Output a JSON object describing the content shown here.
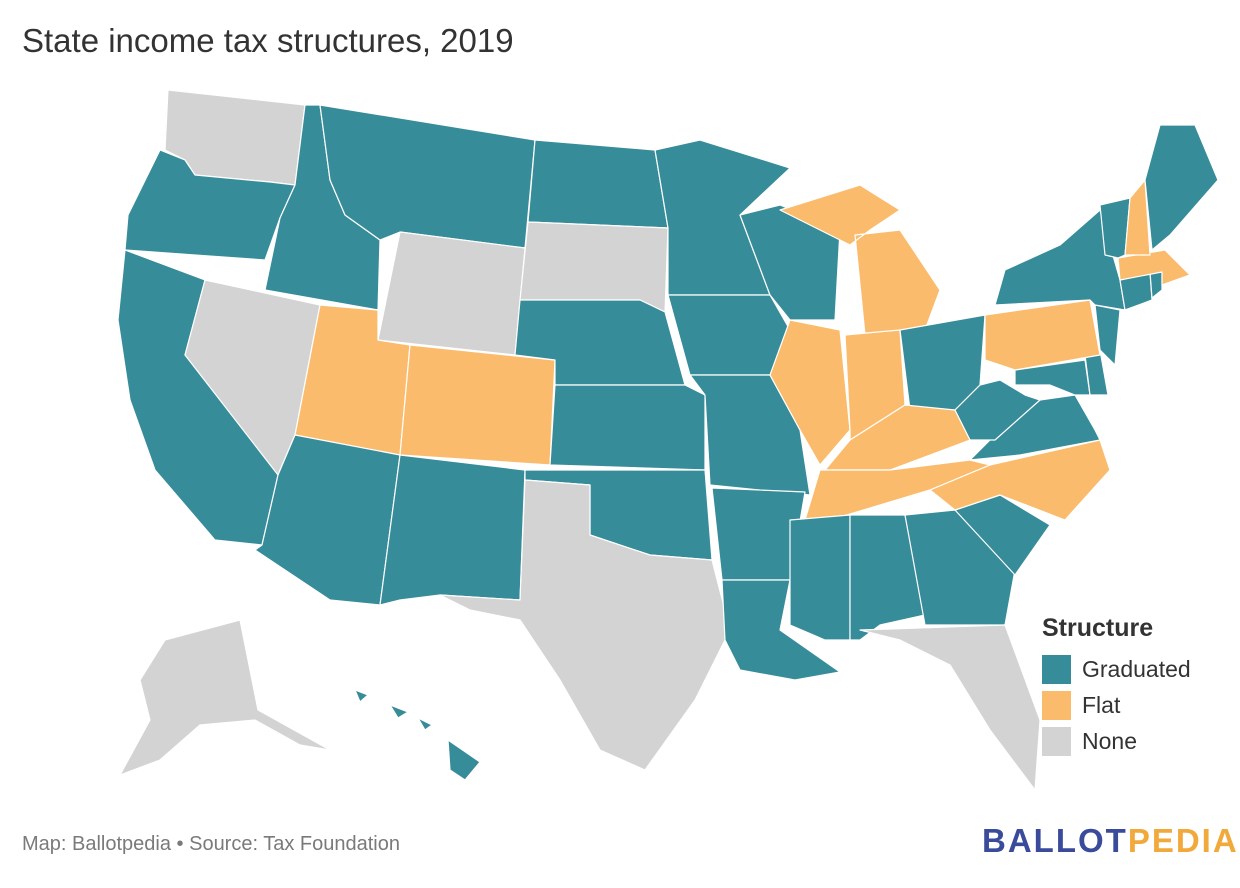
{
  "title": "State income tax structures, 2019",
  "legend": {
    "title": "Structure",
    "items": [
      {
        "label": "Graduated",
        "color": "#368c98"
      },
      {
        "label": "Flat",
        "color": "#fbbb6c"
      },
      {
        "label": "None",
        "color": "#d3d3d3"
      }
    ]
  },
  "colors": {
    "Graduated": "#368c98",
    "Flat": "#fbbb6c",
    "None": "#d3d3d3",
    "border": "#ffffff"
  },
  "states": [
    {
      "name": "Washington",
      "category": "None"
    },
    {
      "name": "Oregon",
      "category": "Graduated"
    },
    {
      "name": "California",
      "category": "Graduated"
    },
    {
      "name": "Nevada",
      "category": "None"
    },
    {
      "name": "Idaho",
      "category": "Graduated"
    },
    {
      "name": "Montana",
      "category": "Graduated"
    },
    {
      "name": "Wyoming",
      "category": "None"
    },
    {
      "name": "Utah",
      "category": "Flat"
    },
    {
      "name": "Arizona",
      "category": "Graduated"
    },
    {
      "name": "Colorado",
      "category": "Flat"
    },
    {
      "name": "New Mexico",
      "category": "Graduated"
    },
    {
      "name": "North Dakota",
      "category": "Graduated"
    },
    {
      "name": "South Dakota",
      "category": "None"
    },
    {
      "name": "Nebraska",
      "category": "Graduated"
    },
    {
      "name": "Kansas",
      "category": "Graduated"
    },
    {
      "name": "Oklahoma",
      "category": "Graduated"
    },
    {
      "name": "Texas",
      "category": "None"
    },
    {
      "name": "Minnesota",
      "category": "Graduated"
    },
    {
      "name": "Iowa",
      "category": "Graduated"
    },
    {
      "name": "Missouri",
      "category": "Graduated"
    },
    {
      "name": "Arkansas",
      "category": "Graduated"
    },
    {
      "name": "Louisiana",
      "category": "Graduated"
    },
    {
      "name": "Wisconsin",
      "category": "Graduated"
    },
    {
      "name": "Illinois",
      "category": "Flat"
    },
    {
      "name": "Michigan",
      "category": "Flat"
    },
    {
      "name": "Indiana",
      "category": "Flat"
    },
    {
      "name": "Ohio",
      "category": "Graduated"
    },
    {
      "name": "Kentucky",
      "category": "Flat"
    },
    {
      "name": "Tennessee",
      "category": "Flat"
    },
    {
      "name": "Mississippi",
      "category": "Graduated"
    },
    {
      "name": "Alabama",
      "category": "Graduated"
    },
    {
      "name": "Georgia",
      "category": "Graduated"
    },
    {
      "name": "Florida",
      "category": "None"
    },
    {
      "name": "South Carolina",
      "category": "Graduated"
    },
    {
      "name": "North Carolina",
      "category": "Flat"
    },
    {
      "name": "Virginia",
      "category": "Graduated"
    },
    {
      "name": "West Virginia",
      "category": "Graduated"
    },
    {
      "name": "Maryland",
      "category": "Graduated"
    },
    {
      "name": "Delaware",
      "category": "Graduated"
    },
    {
      "name": "Pennsylvania",
      "category": "Flat"
    },
    {
      "name": "New Jersey",
      "category": "Graduated"
    },
    {
      "name": "New York",
      "category": "Graduated"
    },
    {
      "name": "Connecticut",
      "category": "Graduated"
    },
    {
      "name": "Rhode Island",
      "category": "Graduated"
    },
    {
      "name": "Massachusetts",
      "category": "Flat"
    },
    {
      "name": "Vermont",
      "category": "Graduated"
    },
    {
      "name": "New Hampshire",
      "category": "Flat"
    },
    {
      "name": "Maine",
      "category": "Graduated"
    },
    {
      "name": "Alaska",
      "category": "None"
    },
    {
      "name": "Hawaii",
      "category": "Graduated"
    }
  ],
  "footer": {
    "credit": "Map: Ballotpedia • Source: Tax Foundation"
  },
  "logo": {
    "part1": "BALLOT",
    "part2": "PEDIA"
  }
}
